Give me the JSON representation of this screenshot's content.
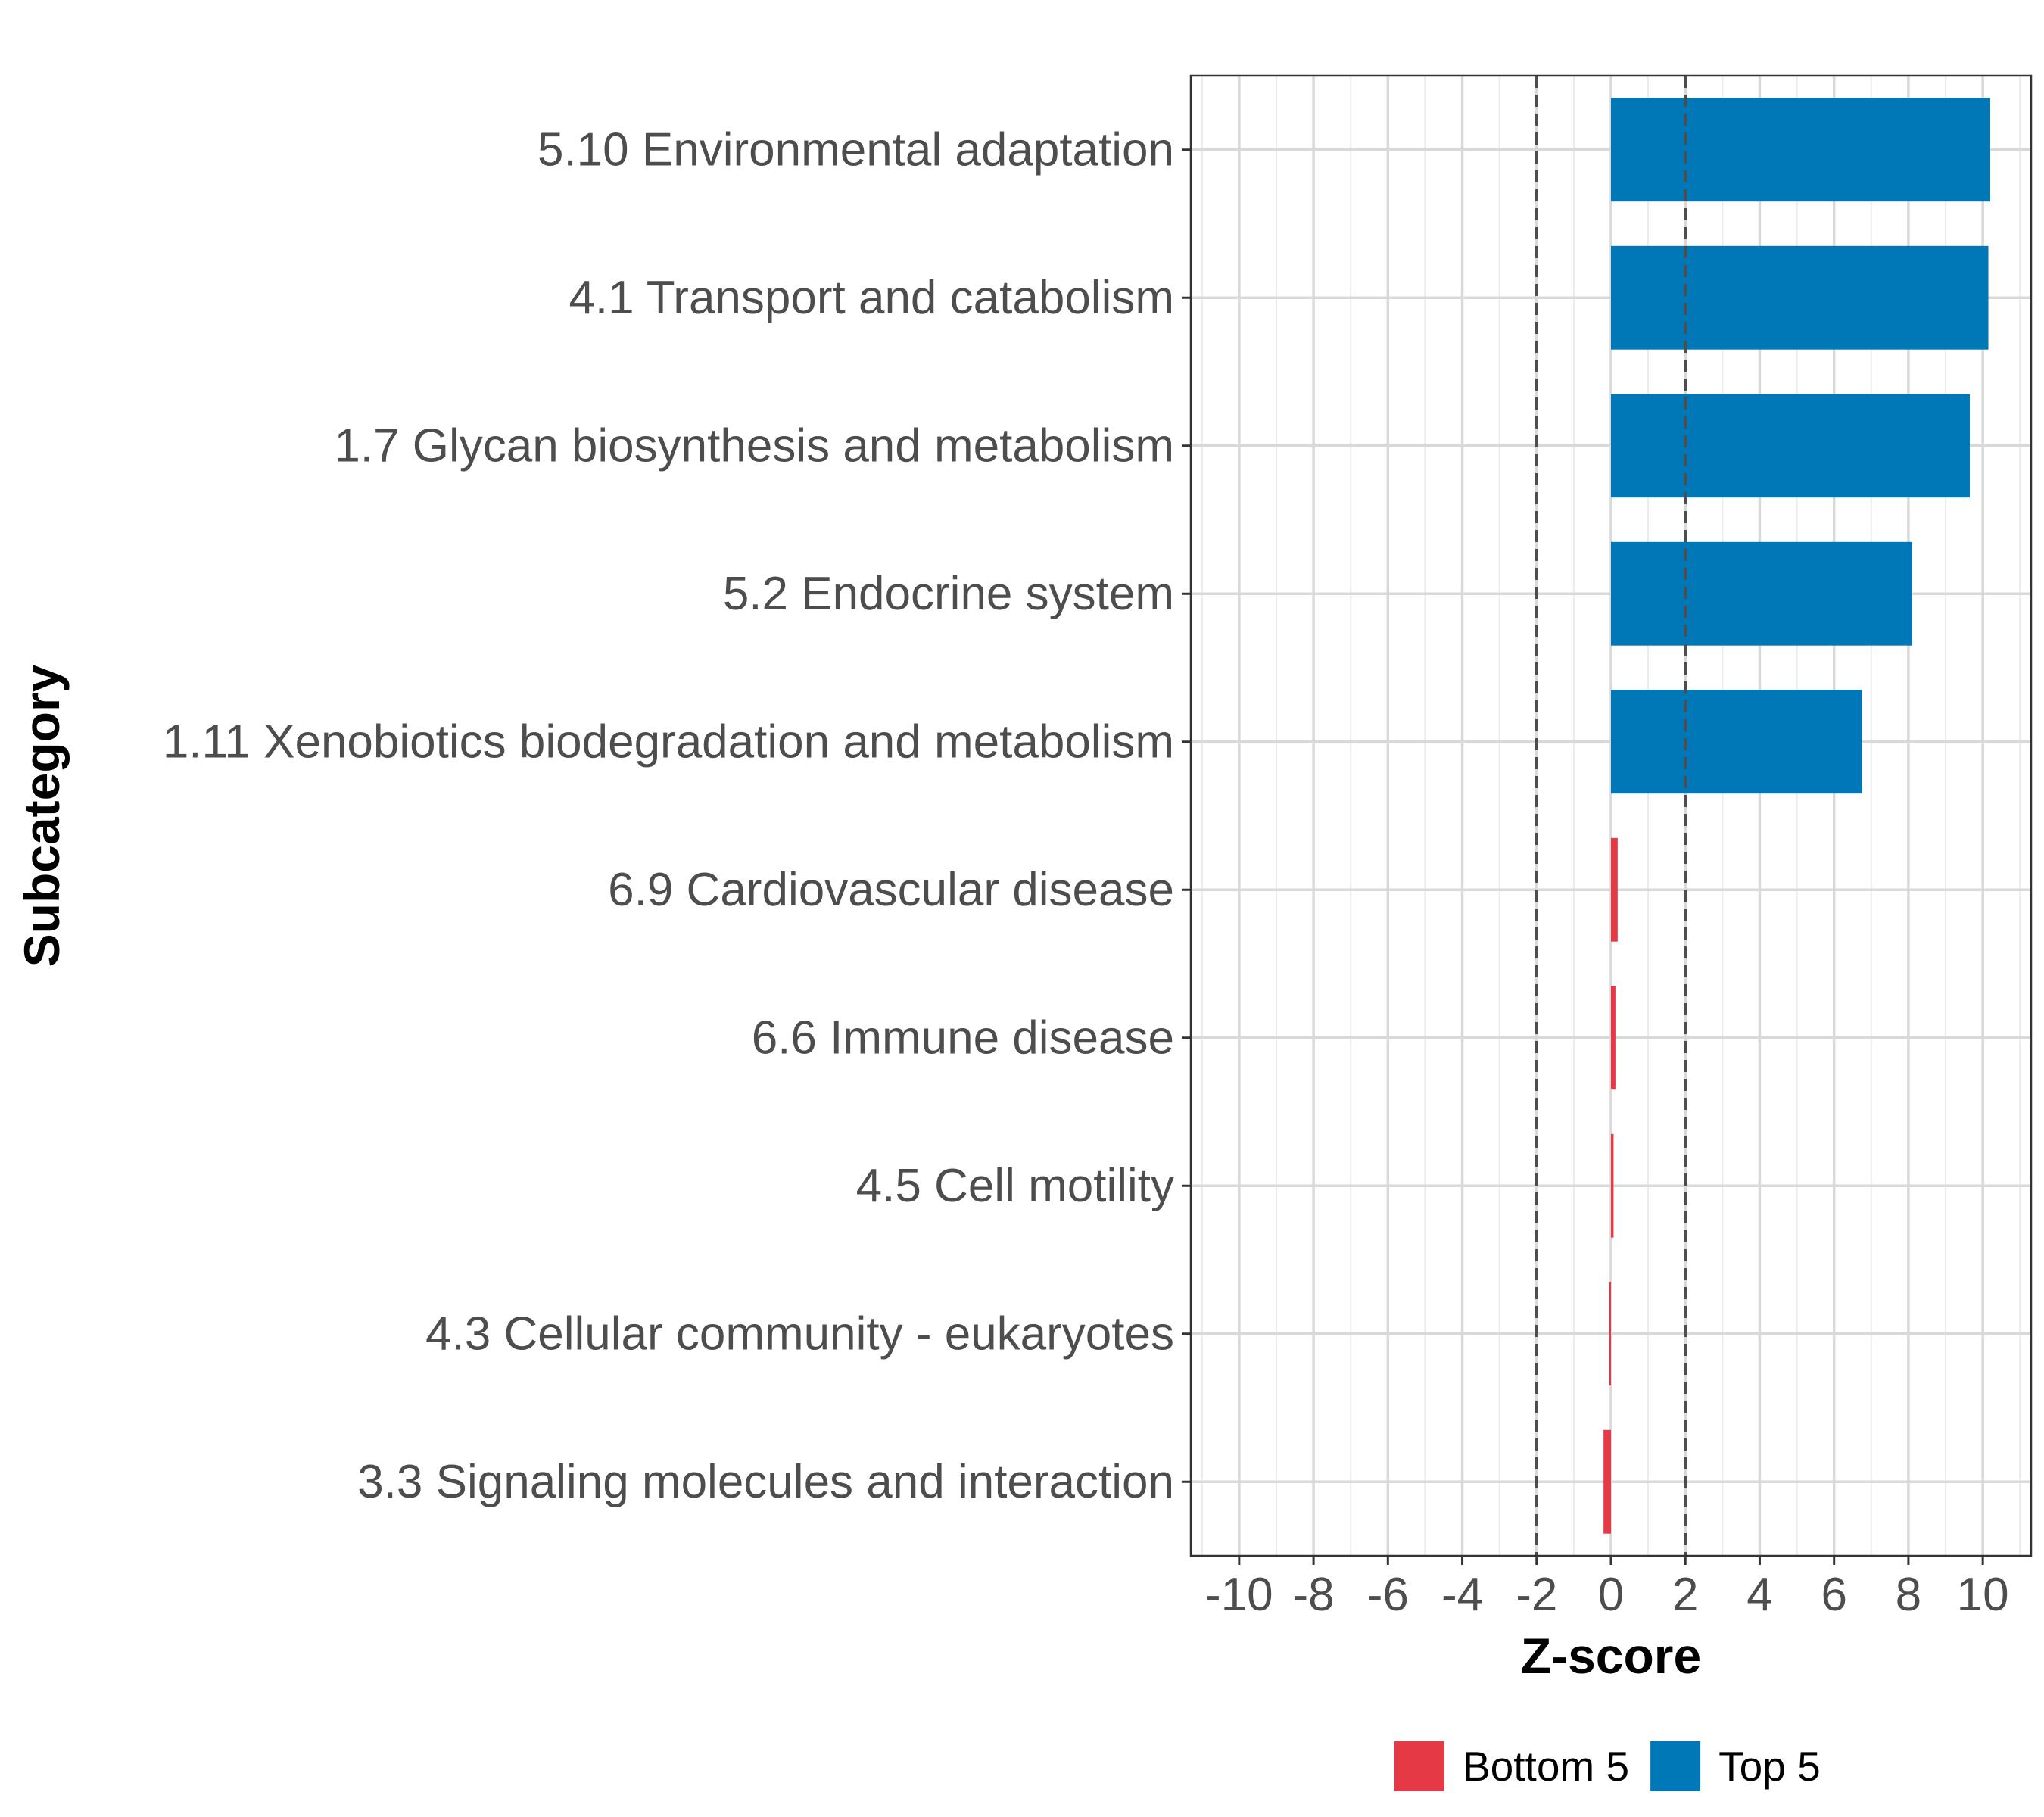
{
  "chart_data": {
    "type": "bar",
    "orientation": "horizontal",
    "categories": [
      "5.10 Environmental adaptation",
      "4.1 Transport and catabolism",
      "1.7 Glycan biosynthesis and metabolism",
      "5.2 Endocrine system",
      "1.11 Xenobiotics biodegradation and metabolism",
      "6.9 Cardiovascular disease",
      "6.6 Immune disease",
      "4.5 Cell motility",
      "4.3 Cellular community - eukaryotes",
      "3.3 Signaling molecules and interaction"
    ],
    "values": [
      10.2,
      10.15,
      9.65,
      8.1,
      6.75,
      0.18,
      0.12,
      0.07,
      -0.03,
      -0.2
    ],
    "groups": [
      "Top 5",
      "Top 5",
      "Top 5",
      "Top 5",
      "Top 5",
      "Bottom 5",
      "Bottom 5",
      "Bottom 5",
      "Bottom 5",
      "Bottom 5"
    ],
    "xlabel": "Z-score",
    "ylabel": "Subcategory",
    "xlim": [
      -11.3,
      11.3
    ],
    "xticks": [
      -10,
      -8,
      -6,
      -4,
      -2,
      0,
      2,
      4,
      6,
      8,
      10
    ],
    "xtick_labels": [
      "-10",
      "-8",
      "-6",
      "-4",
      "-2",
      "0",
      "2",
      "4",
      "6",
      "8",
      "10"
    ],
    "reference_lines": [
      -2,
      2
    ],
    "grid": true,
    "legend": {
      "position": "bottom",
      "entries": [
        {
          "label": "Bottom 5",
          "color": "#E63946"
        },
        {
          "label": "Top 5",
          "color": "#0077B6"
        }
      ]
    },
    "colors": {
      "Top 5": "#0077B6",
      "Bottom 5": "#E63946"
    }
  }
}
